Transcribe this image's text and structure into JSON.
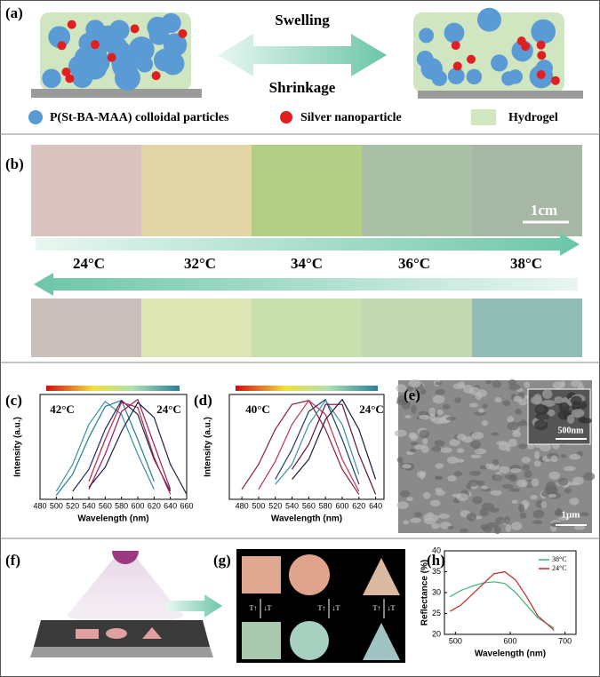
{
  "panels": {
    "a": {
      "label": "(a)",
      "swelling": "Swelling",
      "shrinkage": "Shrinkage",
      "legend": [
        "P(St-BA-MAA) colloidal particles",
        "Silver nanoparticle",
        "Hydrogel"
      ]
    },
    "b": {
      "label": "(b)",
      "scale_bar": "1cm",
      "temperatures": [
        "24°C",
        "32°C",
        "34°C",
        "36°C",
        "38°C"
      ]
    },
    "e": {
      "label": "(e)",
      "inset_scale": "500nm",
      "scale_bar": "1μm"
    },
    "f": {
      "label": "(f)"
    },
    "g": {
      "label": "(g)",
      "transition_labels": [
        "T↑",
        "↓T"
      ]
    }
  },
  "chart_data": [
    {
      "type": "line",
      "label": "(c)",
      "xlabel": "Wavelength (nm)",
      "ylabel": "Intensity (a.u.)",
      "annotations": [
        "42°C",
        "24°C"
      ],
      "x": [
        480,
        500,
        520,
        540,
        560,
        580,
        600,
        620,
        640,
        660
      ],
      "xlim": [
        480,
        660
      ],
      "xticks": [
        480,
        500,
        520,
        540,
        560,
        580,
        600,
        620,
        640,
        660
      ],
      "ylim": [
        0,
        1.05
      ],
      "series": [
        {
          "color": "#3a8fa8",
          "values": [
            null,
            0.08,
            0.35,
            0.75,
            0.98,
            0.85,
            0.45,
            0.1,
            null,
            null
          ]
        },
        {
          "color": "#1f7f8f",
          "values": [
            null,
            0.04,
            0.25,
            0.62,
            0.93,
            0.99,
            0.6,
            0.18,
            null,
            null
          ]
        },
        {
          "color": "#1a2a5a",
          "values": [
            null,
            null,
            0.08,
            0.3,
            0.7,
            0.99,
            0.85,
            0.4,
            0.08,
            null
          ]
        },
        {
          "color": "#c0203a",
          "values": [
            null,
            null,
            null,
            0.18,
            0.6,
            0.97,
            0.92,
            0.42,
            0.05,
            null
          ]
        },
        {
          "color": "#a01860",
          "values": [
            null,
            null,
            null,
            0.1,
            0.45,
            0.88,
            1.0,
            0.55,
            0.1,
            null
          ]
        },
        {
          "color": "#202040",
          "values": [
            null,
            null,
            null,
            0.12,
            0.32,
            0.68,
            0.97,
            0.82,
            0.35,
            0.05
          ]
        }
      ]
    },
    {
      "type": "line",
      "label": "(d)",
      "xlabel": "Wavelength (nm)",
      "ylabel": "Intensity (a.u.)",
      "annotations": [
        "40°C",
        "24°C"
      ],
      "x": [
        480,
        500,
        520,
        540,
        560,
        580,
        600,
        620,
        640
      ],
      "xlim": [
        465,
        650
      ],
      "xticks": [
        480,
        500,
        520,
        540,
        560,
        580,
        600,
        620,
        640
      ],
      "ylim": [
        0,
        1.05
      ],
      "series": [
        {
          "color": "#8a1a3a",
          "values": [
            0.1,
            0.35,
            0.7,
            0.95,
            0.99,
            0.7,
            0.3,
            0.05,
            null
          ]
        },
        {
          "color": "#c03050",
          "values": [
            null,
            0.1,
            0.38,
            0.75,
            0.99,
            0.85,
            0.4,
            0.08,
            null
          ]
        },
        {
          "color": "#1a3a6a",
          "values": [
            null,
            null,
            0.2,
            0.5,
            0.88,
            1.0,
            0.6,
            0.15,
            null
          ]
        },
        {
          "color": "#3a90a0",
          "values": [
            null,
            null,
            0.15,
            0.35,
            0.75,
            0.99,
            0.75,
            0.25,
            null
          ]
        },
        {
          "color": "#601040",
          "values": [
            null,
            null,
            null,
            0.3,
            0.55,
            0.95,
            0.95,
            0.45,
            0.05
          ]
        },
        {
          "color": "#1a1a3a",
          "values": [
            null,
            null,
            null,
            0.2,
            0.4,
            0.8,
            1.0,
            0.7,
            0.2
          ]
        }
      ]
    },
    {
      "type": "line",
      "label": "(h)",
      "xlabel": "Wavelength (nm)",
      "ylabel": "Reflectance (%)",
      "legend": "upper right",
      "x": [
        490,
        510,
        530,
        550,
        570,
        590,
        610,
        630,
        650,
        680
      ],
      "xlim": [
        480,
        720
      ],
      "xticks": [
        500,
        600,
        700
      ],
      "ylim": [
        20,
        40
      ],
      "yticks": [
        20,
        25,
        30,
        35,
        40
      ],
      "series": [
        {
          "name": "38°C",
          "color": "#3cb371",
          "values": [
            29,
            30.5,
            31.5,
            32.3,
            32.6,
            32.2,
            30,
            27,
            24,
            21.5
          ]
        },
        {
          "name": "24°C",
          "color": "#c0282d",
          "values": [
            25.5,
            27,
            29.5,
            32,
            34.5,
            35,
            33,
            29,
            24.5,
            21
          ]
        }
      ]
    }
  ]
}
